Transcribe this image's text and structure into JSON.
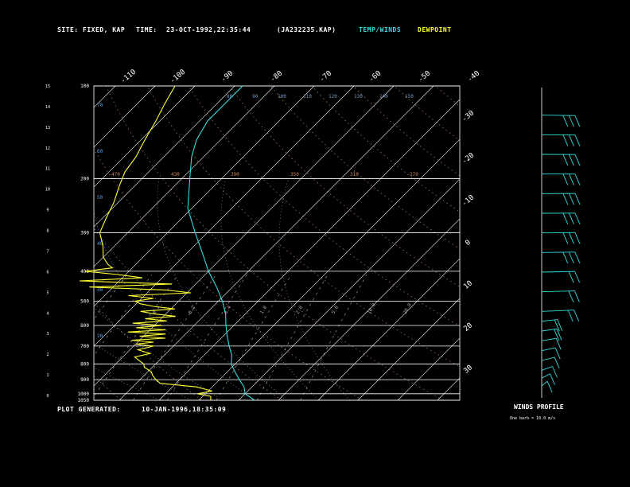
{
  "header": {
    "site_label": "SITE:",
    "site_value": "FIXED, KAP",
    "time_label": "TIME:",
    "time_value": "23-OCT-1992,22:35:44",
    "file_id": "(JA232235.KAP)",
    "legend_temp": "TEMP/WINDS",
    "legend_dew": "DEWPOINT"
  },
  "footer": {
    "generated_label": "PLOT GENERATED:",
    "generated_value": "10-JAN-1996,18:35:09"
  },
  "wind_panel": {
    "title": "WINDS PROFILE",
    "note": "One barb = 10.0 m/s"
  },
  "colors": {
    "background": "#000000",
    "temperature": "#33dddd",
    "dewpoint": "#ffff33",
    "isotherm": "#ffffff",
    "dry_adiabat": "#c8855a",
    "moist_adiabat": "#7a9ec8",
    "mixing_ratio": "#aaaaaa",
    "theta_e_labels": "#5aa0e6",
    "text": "#ffffff"
  },
  "chart_data": {
    "type": "line",
    "title": "",
    "diagram": "skew-T log-P",
    "ylabel_left_km": [
      0,
      1,
      2,
      3,
      4,
      5,
      6,
      7,
      8,
      9,
      10,
      11,
      12,
      13,
      14,
      15
    ],
    "pressure_levels_hpa": [
      1050,
      1000,
      900,
      800,
      700,
      600,
      500,
      400,
      300,
      200,
      100
    ],
    "top_isotherm_ticks_c": [
      -110,
      -100,
      -90,
      -80,
      -70,
      -60,
      -50,
      -40
    ],
    "right_isotherm_ticks_c": [
      -30,
      -20,
      -10,
      0,
      10,
      20,
      30
    ],
    "grid": true,
    "temperature_profile": {
      "name": "TEMP/WINDS",
      "points": [
        {
          "p": 1050,
          "t": 14
        },
        {
          "p": 1000,
          "t": 10
        },
        {
          "p": 950,
          "t": 8
        },
        {
          "p": 900,
          "t": 5
        },
        {
          "p": 850,
          "t": 2
        },
        {
          "p": 800,
          "t": -1
        },
        {
          "p": 750,
          "t": -3
        },
        {
          "p": 700,
          "t": -6
        },
        {
          "p": 650,
          "t": -9
        },
        {
          "p": 600,
          "t": -12
        },
        {
          "p": 550,
          "t": -15
        },
        {
          "p": 500,
          "t": -19
        },
        {
          "p": 450,
          "t": -24
        },
        {
          "p": 400,
          "t": -30
        },
        {
          "p": 350,
          "t": -36
        },
        {
          "p": 300,
          "t": -43
        },
        {
          "p": 250,
          "t": -51
        },
        {
          "p": 200,
          "t": -58
        },
        {
          "p": 170,
          "t": -63
        },
        {
          "p": 150,
          "t": -66
        },
        {
          "p": 130,
          "t": -68
        },
        {
          "p": 115,
          "t": -68
        },
        {
          "p": 100,
          "t": -68
        }
      ]
    },
    "dewpoint_profile": {
      "name": "DEWPOINT",
      "points": [
        {
          "p": 1050,
          "t": 3
        },
        {
          "p": 1020,
          "t": 2
        },
        {
          "p": 1000,
          "t": -2
        },
        {
          "p": 980,
          "t": 1
        },
        {
          "p": 950,
          "t": -4
        },
        {
          "p": 925,
          "t": -14
        },
        {
          "p": 900,
          "t": -16
        },
        {
          "p": 870,
          "t": -18
        },
        {
          "p": 850,
          "t": -19
        },
        {
          "p": 820,
          "t": -22
        },
        {
          "p": 800,
          "t": -23
        },
        {
          "p": 780,
          "t": -25
        },
        {
          "p": 760,
          "t": -27
        },
        {
          "p": 740,
          "t": -24
        },
        {
          "p": 720,
          "t": -28
        },
        {
          "p": 700,
          "t": -25
        },
        {
          "p": 690,
          "t": -30
        },
        {
          "p": 680,
          "t": -26
        },
        {
          "p": 670,
          "t": -32
        },
        {
          "p": 660,
          "t": -24
        },
        {
          "p": 650,
          "t": -31
        },
        {
          "p": 640,
          "t": -25
        },
        {
          "p": 630,
          "t": -35
        },
        {
          "p": 620,
          "t": -26
        },
        {
          "p": 610,
          "t": -34
        },
        {
          "p": 600,
          "t": -28
        },
        {
          "p": 590,
          "t": -36
        },
        {
          "p": 580,
          "t": -28
        },
        {
          "p": 570,
          "t": -34
        },
        {
          "p": 560,
          "t": -27
        },
        {
          "p": 550,
          "t": -33
        },
        {
          "p": 540,
          "t": -37
        },
        {
          "p": 530,
          "t": -29
        },
        {
          "p": 520,
          "t": -35
        },
        {
          "p": 510,
          "t": -39
        },
        {
          "p": 500,
          "t": -41
        },
        {
          "p": 490,
          "t": -37
        },
        {
          "p": 480,
          "t": -44
        },
        {
          "p": 470,
          "t": -29
        },
        {
          "p": 460,
          "t": -36
        },
        {
          "p": 450,
          "t": -56
        },
        {
          "p": 440,
          "t": -36
        },
        {
          "p": 430,
          "t": -60
        },
        {
          "p": 420,
          "t": -45
        },
        {
          "p": 410,
          "t": -52
        },
        {
          "p": 400,
          "t": -61
        },
        {
          "p": 390,
          "t": -55
        },
        {
          "p": 380,
          "t": -57
        },
        {
          "p": 360,
          "t": -60
        },
        {
          "p": 330,
          "t": -63
        },
        {
          "p": 300,
          "t": -67
        },
        {
          "p": 270,
          "t": -69
        },
        {
          "p": 240,
          "t": -71
        },
        {
          "p": 210,
          "t": -74
        },
        {
          "p": 190,
          "t": -76
        },
        {
          "p": 170,
          "t": -77
        },
        {
          "p": 150,
          "t": -79
        },
        {
          "p": 130,
          "t": -81
        },
        {
          "p": 115,
          "t": -83
        },
        {
          "p": 100,
          "t": -85
        }
      ]
    },
    "dry_adiabat_labels_k": [
      470,
      430,
      390,
      350,
      310,
      270
    ],
    "moist_adiabat_labels_k": [
      80,
      90,
      100,
      110,
      120,
      130,
      140,
      150
    ],
    "theta_e_labels_k": [
      20,
      30,
      40,
      50,
      60,
      70
    ],
    "mixing_ratio_labels_gkg": [
      0.1,
      0.2,
      0.4,
      1.0,
      2.0,
      5.0,
      10.0,
      20.0
    ],
    "wind_profile": {
      "barb_value_ms": 10.0,
      "levels": [
        {
          "height_km": 0.2,
          "dir_deg": 200,
          "speed_ms": 6
        },
        {
          "height_km": 0.6,
          "dir_deg": 210,
          "speed_ms": 8
        },
        {
          "height_km": 1.0,
          "dir_deg": 220,
          "speed_ms": 9
        },
        {
          "height_km": 1.5,
          "dir_deg": 230,
          "speed_ms": 11
        },
        {
          "height_km": 2.0,
          "dir_deg": 235,
          "speed_ms": 12
        },
        {
          "height_km": 2.5,
          "dir_deg": 240,
          "speed_ms": 13
        },
        {
          "height_km": 3.0,
          "dir_deg": 245,
          "speed_ms": 15
        },
        {
          "height_km": 3.5,
          "dir_deg": 250,
          "speed_ms": 16
        },
        {
          "height_km": 4.0,
          "dir_deg": 255,
          "speed_ms": 17
        },
        {
          "height_km": 5.0,
          "dir_deg": 260,
          "speed_ms": 20
        },
        {
          "height_km": 6.0,
          "dir_deg": 262,
          "speed_ms": 23
        },
        {
          "height_km": 7.0,
          "dir_deg": 265,
          "speed_ms": 26
        },
        {
          "height_km": 8.0,
          "dir_deg": 267,
          "speed_ms": 28
        },
        {
          "height_km": 9.0,
          "dir_deg": 268,
          "speed_ms": 30
        },
        {
          "height_km": 10.0,
          "dir_deg": 268,
          "speed_ms": 30
        },
        {
          "height_km": 11.0,
          "dir_deg": 270,
          "speed_ms": 29
        },
        {
          "height_km": 12.0,
          "dir_deg": 272,
          "speed_ms": 28
        },
        {
          "height_km": 13.0,
          "dir_deg": 273,
          "speed_ms": 27
        },
        {
          "height_km": 14.0,
          "dir_deg": 275,
          "speed_ms": 25
        }
      ]
    }
  }
}
